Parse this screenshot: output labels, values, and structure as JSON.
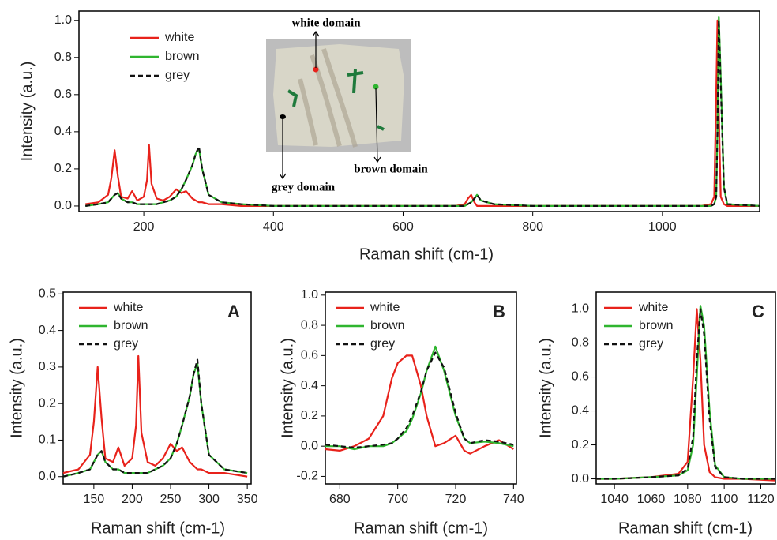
{
  "chart_data": [
    {
      "type": "line",
      "x_label": "Raman shift (cm-1)",
      "y_label": "Intensity (a.u.)",
      "annotations": [
        "white domain",
        "brown domain",
        "grey domain"
      ],
      "xlim": [
        100,
        1150
      ],
      "ylim": [
        -0.03,
        1.05
      ],
      "xticks": [
        200,
        400,
        600,
        800,
        1000
      ],
      "yticks": [
        {
          "value": 0,
          "label": "0.0"
        },
        {
          "value": 0.2,
          "label": "0.2"
        },
        {
          "value": 0.4,
          "label": "0.4"
        },
        {
          "value": 0.6,
          "label": "0.6"
        },
        {
          "value": 0.8,
          "label": "0.8"
        },
        {
          "value": 1,
          "label": "1.0"
        }
      ],
      "x": [
        110,
        130,
        145,
        150,
        155,
        160,
        165,
        175,
        182,
        190,
        200,
        205,
        208,
        212,
        220,
        230,
        240,
        250,
        258,
        265,
        275,
        280,
        285,
        290,
        300,
        320,
        350,
        400,
        500,
        600,
        680,
        695,
        700,
        705,
        710,
        714,
        720,
        740,
        800,
        900,
        1000,
        1060,
        1075,
        1080,
        1083,
        1085,
        1087,
        1090,
        1095,
        1100,
        1150
      ],
      "series": [
        {
          "name": "white",
          "color": "#e8221b",
          "style": "solid",
          "values": [
            0.01,
            0.02,
            0.06,
            0.15,
            0.3,
            0.16,
            0.05,
            0.04,
            0.08,
            0.03,
            0.05,
            0.14,
            0.33,
            0.12,
            0.04,
            0.03,
            0.05,
            0.09,
            0.07,
            0.08,
            0.04,
            0.03,
            0.02,
            0.02,
            0.01,
            0.01,
            0,
            0,
            0,
            0,
            0,
            0.01,
            0.04,
            0.06,
            0.02,
            0,
            0,
            0,
            0,
            0,
            0,
            0,
            0.01,
            0.05,
            0.6,
            1.0,
            0.5,
            0.05,
            0.01,
            0,
            0
          ]
        },
        {
          "name": "brown",
          "color": "#2fb52f",
          "style": "solid",
          "values": [
            0,
            0.01,
            0.02,
            0.04,
            0.06,
            0.07,
            0.04,
            0.02,
            0.02,
            0.01,
            0.01,
            0.01,
            0.01,
            0.01,
            0.01,
            0.02,
            0.03,
            0.05,
            0.09,
            0.14,
            0.22,
            0.28,
            0.31,
            0.2,
            0.06,
            0.02,
            0.01,
            0,
            0,
            0,
            0,
            0,
            0.01,
            0.02,
            0.04,
            0.06,
            0.03,
            0.01,
            0,
            0,
            0,
            0,
            0,
            0.01,
            0.05,
            0.4,
            1.02,
            0.7,
            0.1,
            0.01,
            0
          ]
        },
        {
          "name": "grey",
          "color": "#111111",
          "style": "dashed",
          "values": [
            0,
            0.01,
            0.02,
            0.04,
            0.06,
            0.07,
            0.04,
            0.02,
            0.02,
            0.01,
            0.01,
            0.01,
            0.01,
            0.01,
            0.01,
            0.02,
            0.03,
            0.05,
            0.09,
            0.14,
            0.22,
            0.28,
            0.32,
            0.2,
            0.06,
            0.02,
            0.01,
            0,
            0,
            0,
            0,
            0,
            0.01,
            0.02,
            0.04,
            0.06,
            0.03,
            0.01,
            0,
            0,
            0,
            0,
            0,
            0.01,
            0.05,
            0.4,
            1.0,
            0.65,
            0.1,
            0.01,
            0
          ]
        }
      ]
    },
    {
      "type": "line",
      "panel_label": "A",
      "x_label": "Raman shift (cm-1)",
      "y_label": "Intensity (a.u.)",
      "xlim": [
        110,
        355
      ],
      "ylim": [
        -0.02,
        0.505
      ],
      "xticks": [
        150,
        200,
        250,
        300,
        350
      ],
      "yticks": [
        {
          "value": 0,
          "label": "0.0"
        },
        {
          "value": 0.1,
          "label": "0.1"
        },
        {
          "value": 0.2,
          "label": "0.2"
        },
        {
          "value": 0.3,
          "label": "0.3"
        },
        {
          "value": 0.4,
          "label": "0.4"
        },
        {
          "value": 0.5,
          "label": "0.5"
        }
      ],
      "x": [
        110,
        130,
        145,
        150,
        155,
        160,
        165,
        175,
        182,
        190,
        200,
        205,
        208,
        212,
        220,
        230,
        240,
        250,
        258,
        265,
        275,
        280,
        285,
        290,
        300,
        320,
        350
      ],
      "series": [
        {
          "name": "white",
          "color": "#e8221b",
          "style": "solid",
          "values": [
            0.01,
            0.02,
            0.06,
            0.15,
            0.3,
            0.16,
            0.05,
            0.04,
            0.08,
            0.03,
            0.05,
            0.14,
            0.33,
            0.12,
            0.04,
            0.03,
            0.05,
            0.09,
            0.07,
            0.08,
            0.04,
            0.03,
            0.02,
            0.02,
            0.01,
            0.01,
            0
          ]
        },
        {
          "name": "brown",
          "color": "#2fb52f",
          "style": "solid",
          "values": [
            0,
            0.01,
            0.02,
            0.04,
            0.06,
            0.07,
            0.04,
            0.02,
            0.02,
            0.01,
            0.01,
            0.01,
            0.01,
            0.01,
            0.01,
            0.02,
            0.03,
            0.05,
            0.09,
            0.14,
            0.22,
            0.28,
            0.31,
            0.2,
            0.06,
            0.02,
            0.01
          ]
        },
        {
          "name": "grey",
          "color": "#111111",
          "style": "dashed",
          "values": [
            0,
            0.01,
            0.02,
            0.04,
            0.06,
            0.07,
            0.04,
            0.02,
            0.02,
            0.01,
            0.01,
            0.01,
            0.01,
            0.01,
            0.01,
            0.02,
            0.03,
            0.05,
            0.09,
            0.14,
            0.22,
            0.28,
            0.32,
            0.2,
            0.06,
            0.02,
            0.01
          ]
        }
      ]
    },
    {
      "type": "line",
      "panel_label": "B",
      "x_label": "Raman shift (cm-1)",
      "y_label": "Intensity (a.u.)",
      "xlim": [
        675,
        741
      ],
      "ylim": [
        -0.25,
        1.02
      ],
      "xticks": [
        680,
        700,
        720,
        740
      ],
      "yticks": [
        {
          "value": -0.2,
          "label": "-0.2"
        },
        {
          "value": 0,
          "label": "0.0"
        },
        {
          "value": 0.2,
          "label": "0.2"
        },
        {
          "value": 0.4,
          "label": "0.4"
        },
        {
          "value": 0.6,
          "label": "0.6"
        },
        {
          "value": 0.8,
          "label": "0.8"
        },
        {
          "value": 1,
          "label": "1.0"
        }
      ],
      "x": [
        675,
        680,
        685,
        690,
        695,
        698,
        700,
        703,
        705,
        708,
        710,
        713,
        716,
        720,
        723,
        725,
        730,
        735,
        740
      ],
      "series": [
        {
          "name": "white",
          "color": "#e8221b",
          "style": "solid",
          "values": [
            -0.02,
            -0.03,
            0.0,
            0.05,
            0.2,
            0.45,
            0.55,
            0.6,
            0.6,
            0.4,
            0.2,
            0.0,
            0.02,
            0.07,
            -0.03,
            -0.05,
            0.0,
            0.04,
            -0.02
          ]
        },
        {
          "name": "brown",
          "color": "#2fb52f",
          "style": "solid",
          "values": [
            0.0,
            0.0,
            -0.02,
            0.0,
            0.0,
            0.02,
            0.05,
            0.1,
            0.18,
            0.35,
            0.5,
            0.66,
            0.5,
            0.2,
            0.05,
            0.02,
            0.03,
            0.02,
            0.0
          ]
        },
        {
          "name": "grey",
          "color": "#111111",
          "style": "dashed",
          "values": [
            0.01,
            0.0,
            -0.01,
            0.0,
            0.01,
            0.02,
            0.05,
            0.12,
            0.2,
            0.36,
            0.5,
            0.62,
            0.52,
            0.22,
            0.05,
            0.02,
            0.04,
            0.03,
            0.01
          ]
        }
      ]
    },
    {
      "type": "line",
      "panel_label": "C",
      "x_label": "Raman shift (cm-1)",
      "y_label": "Intensity (a.u.)",
      "xlim": [
        1030,
        1128
      ],
      "ylim": [
        -0.03,
        1.1
      ],
      "xticks": [
        1040,
        1060,
        1080,
        1100,
        1120
      ],
      "yticks": [
        {
          "value": 0,
          "label": "0.0"
        },
        {
          "value": 0.2,
          "label": "0.2"
        },
        {
          "value": 0.4,
          "label": "0.4"
        },
        {
          "value": 0.6,
          "label": "0.6"
        },
        {
          "value": 0.8,
          "label": "0.8"
        },
        {
          "value": 1,
          "label": "1.0"
        }
      ],
      "x": [
        1030,
        1040,
        1060,
        1075,
        1080,
        1083,
        1085,
        1087,
        1089,
        1092,
        1095,
        1100,
        1110,
        1128
      ],
      "series": [
        {
          "name": "white",
          "color": "#e8221b",
          "style": "solid",
          "values": [
            0.0,
            0.0,
            0.01,
            0.03,
            0.1,
            0.6,
            1.0,
            0.7,
            0.2,
            0.04,
            0.01,
            0.0,
            0.0,
            -0.01
          ]
        },
        {
          "name": "brown",
          "color": "#2fb52f",
          "style": "solid",
          "values": [
            0.0,
            0.0,
            0.01,
            0.02,
            0.05,
            0.2,
            0.6,
            1.02,
            0.9,
            0.4,
            0.08,
            0.01,
            0.0,
            0.0
          ]
        },
        {
          "name": "grey",
          "color": "#111111",
          "style": "dashed",
          "values": [
            0.0,
            0.0,
            0.01,
            0.02,
            0.06,
            0.25,
            0.7,
            1.0,
            0.85,
            0.35,
            0.07,
            0.01,
            0.0,
            0.0
          ]
        }
      ]
    }
  ]
}
